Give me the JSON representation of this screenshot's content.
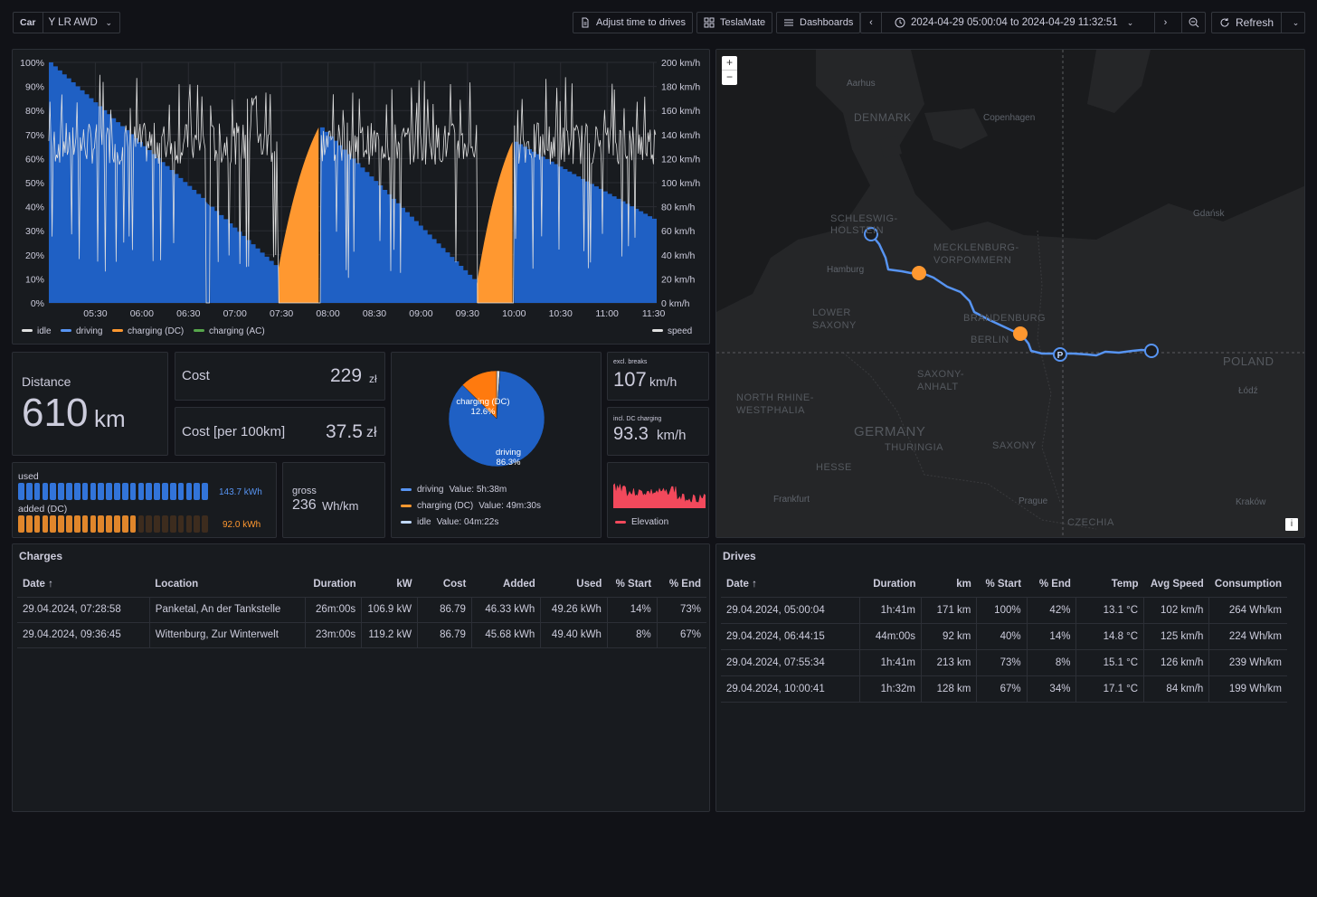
{
  "toolbar": {
    "car_label": "Car",
    "car_value": "Y LR AWD",
    "adjust_label": "Adjust time to drives",
    "teslamate_label": "TeslaMate",
    "dashboards_label": "Dashboards",
    "time_range": "2024-04-29 05:00:04 to 2024-04-29 11:32:51",
    "refresh_label": "Refresh"
  },
  "chart_data": {
    "type": "area",
    "x_ticks": [
      "05:30",
      "06:00",
      "06:30",
      "07:00",
      "07:30",
      "08:00",
      "08:30",
      "09:00",
      "09:30",
      "10:00",
      "10:30",
      "11:00",
      "11:30"
    ],
    "y_left_ticks": [
      "100%",
      "90%",
      "80%",
      "70%",
      "60%",
      "50%",
      "40%",
      "30%",
      "20%",
      "10%",
      "0%"
    ],
    "y_right_ticks": [
      "200 km/h",
      "180 km/h",
      "160 km/h",
      "140 km/h",
      "120 km/h",
      "100 km/h",
      "80 km/h",
      "60 km/h",
      "40 km/h",
      "20 km/h",
      "0 km/h"
    ],
    "ylim_left": [
      0,
      100
    ],
    "ylim_right": [
      0,
      200
    ],
    "x_range": [
      "05:00",
      "11:32"
    ],
    "series": [
      {
        "name": "idle",
        "color": "#e0e0e0"
      },
      {
        "name": "driving",
        "color": "#1f60c4"
      },
      {
        "name": "charging (DC)",
        "color": "#ff9830"
      },
      {
        "name": "charging (AC)",
        "color": "#56a64b"
      }
    ],
    "speed_series": {
      "name": "speed",
      "color": "#e0e0e0"
    },
    "soc_segments": [
      {
        "state": "driving",
        "start": "05:00",
        "end": "06:41",
        "from": 100,
        "to": 42
      },
      {
        "state": "idle",
        "start": "06:41",
        "end": "06:44",
        "from": 42,
        "to": 40
      },
      {
        "state": "driving",
        "start": "06:44",
        "end": "07:28",
        "from": 40,
        "to": 14
      },
      {
        "state": "charging (DC)",
        "start": "07:28",
        "end": "07:54",
        "from": 14,
        "to": 73
      },
      {
        "state": "driving",
        "start": "07:55",
        "end": "09:36",
        "from": 73,
        "to": 8
      },
      {
        "state": "charging (DC)",
        "start": "09:36",
        "end": "09:59",
        "from": 8,
        "to": 67
      },
      {
        "state": "driving",
        "start": "10:00",
        "end": "11:32",
        "from": 67,
        "to": 34
      }
    ]
  },
  "distance": {
    "label": "Distance",
    "value": "610",
    "unit": "km"
  },
  "cost": {
    "label": "Cost",
    "value": "229",
    "unit": "zł"
  },
  "cost_per_100": {
    "label": "Cost [per 100km]",
    "value": "37.5",
    "unit": "zł"
  },
  "energy": {
    "used_label": "used",
    "used_value": "143.7 kWh",
    "used_fill": 1.0,
    "added_label": "added (DC)",
    "added_value": "92.0 kWh",
    "added_fill": 0.64
  },
  "gross": {
    "label": "gross",
    "value": "236",
    "unit": "Wh/km"
  },
  "pie": {
    "slices": [
      {
        "name": "driving",
        "percent": 86.3,
        "color": "#1f60c4",
        "label": "driving",
        "pct_label": "86.3%"
      },
      {
        "name": "charging (DC)",
        "percent": 12.6,
        "color": "#ff7a0e",
        "label": "charging (DC)",
        "pct_label": "12.6%"
      },
      {
        "name": "idle",
        "percent": 1.1,
        "color": "#e0e0e0"
      }
    ],
    "legend": [
      {
        "name": "driving",
        "text": "Value: 5h:38m",
        "color": "#5794f2"
      },
      {
        "name": "charging (DC)",
        "text": "Value: 49m:30s",
        "color": "#ff9830"
      },
      {
        "name": "idle",
        "text": "Value: 04m:22s",
        "color": "#c0d8ff"
      }
    ]
  },
  "speed_excl": {
    "caption": "excl. breaks",
    "value": "107",
    "unit": "km/h"
  },
  "speed_incl": {
    "caption": "incl. DC charging",
    "value": "93.3",
    "unit": "km/h"
  },
  "elevation": {
    "legend": "Elevation",
    "color": "#f2495c"
  },
  "map": {
    "zoom_in": "+",
    "zoom_out": "−",
    "info": "i",
    "regions": [
      "DENMARK",
      "SCHLESWIG-HOLSTEIN",
      "MECKLENBURG-VORPOMMERN",
      "LOWER SAXONY",
      "BRANDENBURG",
      "BERLIN",
      "SAXONY-ANHALT",
      "NORTH RHINE-WESTPHALIA",
      "GERMANY",
      "THURINGIA",
      "SAXONY",
      "HESSE",
      "POLAND",
      "CZECHIA"
    ],
    "cities": [
      "Aarhus",
      "Copenhagen",
      "Hamburg",
      "Frankfurt",
      "Prague",
      "Łódź",
      "Gdańsk",
      "Kraków"
    ]
  },
  "charges": {
    "title": "Charges",
    "columns": [
      "Date",
      "Location",
      "Duration",
      "kW",
      "Cost",
      "Added",
      "Used",
      "% Start",
      "% End"
    ],
    "rows": [
      [
        "29.04.2024, 07:28:58",
        "Panketal, An der Tankstelle",
        "26m:00s",
        "106.9 kW",
        "86.79",
        "46.33 kWh",
        "49.26 kWh",
        "14%",
        "73%"
      ],
      [
        "29.04.2024, 09:36:45",
        "Wittenburg, Zur Winterwelt",
        "23m:00s",
        "119.2 kW",
        "86.79",
        "45.68 kWh",
        "49.40 kWh",
        "8%",
        "67%"
      ]
    ]
  },
  "drives": {
    "title": "Drives",
    "columns": [
      "Date",
      "Duration",
      "km",
      "% Start",
      "% End",
      "Temp",
      "Avg Speed",
      "Consumption"
    ],
    "rows": [
      [
        "29.04.2024, 05:00:04",
        "1h:41m",
        "171 km",
        "100%",
        "42%",
        "13.1 °C",
        "102 km/h",
        "264 Wh/km"
      ],
      [
        "29.04.2024, 06:44:15",
        "44m:00s",
        "92 km",
        "40%",
        "14%",
        "14.8 °C",
        "125 km/h",
        "224 Wh/km"
      ],
      [
        "29.04.2024, 07:55:34",
        "1h:41m",
        "213 km",
        "73%",
        "8%",
        "15.1 °C",
        "126 km/h",
        "239 Wh/km"
      ],
      [
        "29.04.2024, 10:00:41",
        "1h:32m",
        "128 km",
        "67%",
        "34%",
        "17.1 °C",
        "84 km/h",
        "199 Wh/km"
      ]
    ]
  }
}
